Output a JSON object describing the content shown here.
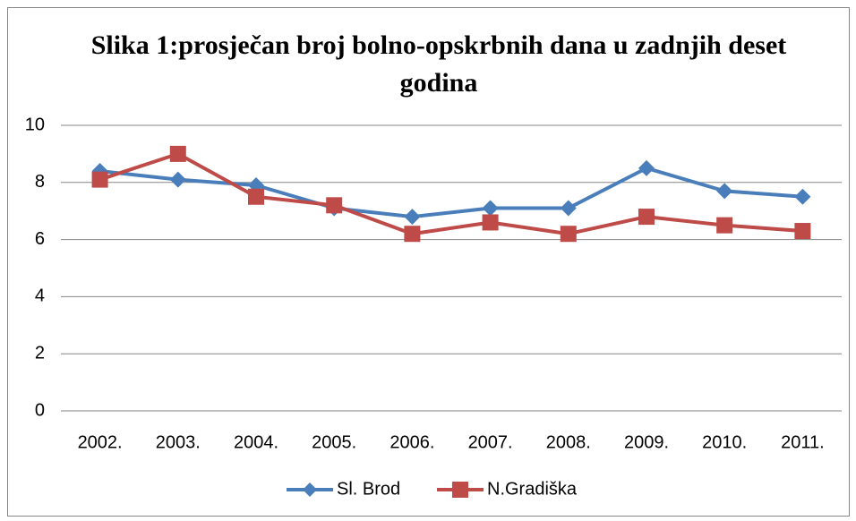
{
  "chart_data": {
    "type": "line",
    "title": "Slika 1:prosječan broj bolno-opskrbnih dana u zadnjih deset godina",
    "categories": [
      "2002.",
      "2003.",
      "2004.",
      "2005.",
      "2006.",
      "2007.",
      "2008.",
      "2009.",
      "2010.",
      "2011."
    ],
    "series": [
      {
        "name": "Sl. Brod",
        "color": "#4a7ebb",
        "marker": "diamond",
        "values": [
          8.4,
          8.1,
          7.9,
          7.1,
          6.8,
          7.1,
          7.1,
          8.5,
          7.7,
          7.5
        ]
      },
      {
        "name": "N.Gradiška",
        "color": "#be4b48",
        "marker": "square",
        "values": [
          8.1,
          9.0,
          7.5,
          7.2,
          6.2,
          6.6,
          6.2,
          6.8,
          6.5,
          6.3
        ]
      }
    ],
    "ylim": [
      0,
      10
    ],
    "yticks": [
      0,
      2,
      4,
      6,
      8,
      10
    ],
    "grid": true,
    "legend": "bottom"
  }
}
